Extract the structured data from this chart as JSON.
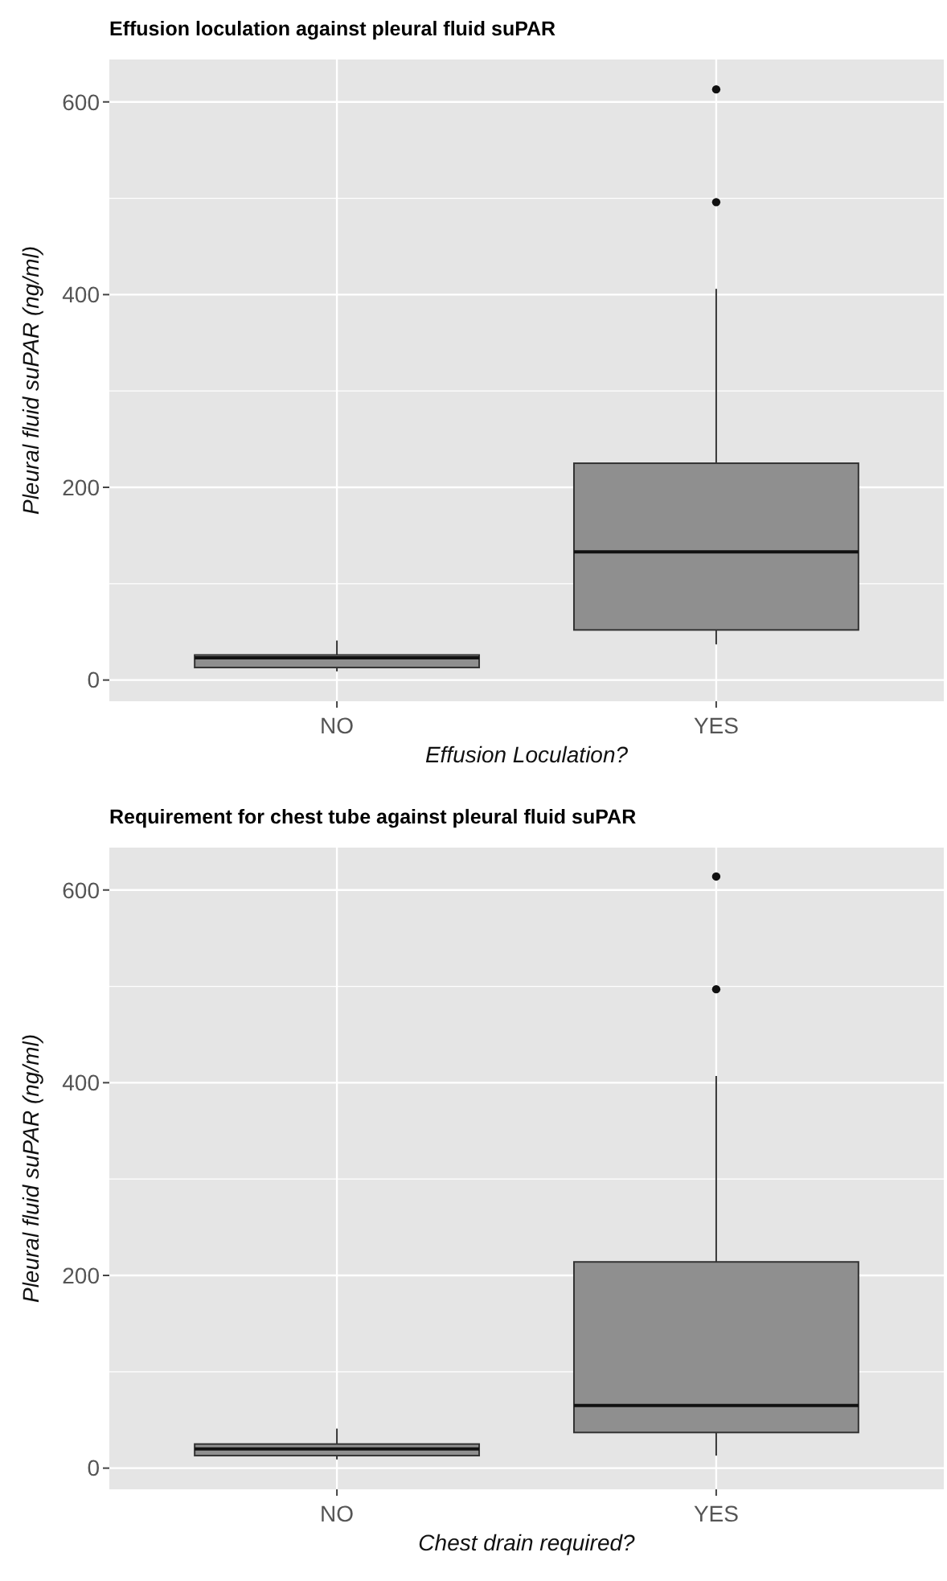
{
  "chart_data": [
    {
      "type": "box",
      "title": "Effusion loculation against pleural fluid suPAR",
      "xlabel": "Effusion Loculation?",
      "ylabel": "Pleural fluid suPAR (ng/ml)",
      "categories": [
        "NO",
        "YES"
      ],
      "color": "#8f8f8f",
      "boxes": [
        {
          "low": 9,
          "q1": 13,
          "median": 23,
          "q3": 26,
          "high": 41
        },
        {
          "low": 37,
          "q1": 52,
          "median": 133,
          "q3": 225,
          "high": 406,
          "outliers": [
            496,
            613
          ]
        }
      ],
      "ylim": [
        -22,
        644
      ],
      "yticks": [
        0,
        {
          "value": 100,
          "label": null
        },
        200,
        {
          "value": 300,
          "label": null
        },
        400,
        {
          "value": 500,
          "label": null
        },
        600
      ],
      "grid": true
    },
    {
      "type": "box",
      "title": "Requirement for chest tube against pleural fluid suPAR",
      "xlabel": "Chest drain required?",
      "ylabel": "Pleural fluid suPAR (ng/ml)",
      "categories": [
        "NO",
        "YES"
      ],
      "color": "#8f8f8f",
      "boxes": [
        {
          "low": 9,
          "q1": 13,
          "median": 20,
          "q3": 25,
          "high": 41
        },
        {
          "low": 13,
          "q1": 37,
          "median": 65,
          "q3": 214,
          "high": 407,
          "outliers": [
            497,
            614
          ]
        }
      ],
      "ylim": [
        -22,
        644
      ],
      "yticks": [
        0,
        {
          "value": 100,
          "label": null
        },
        200,
        {
          "value": 300,
          "label": null
        },
        400,
        {
          "value": 500,
          "label": null
        },
        600
      ],
      "grid": true
    }
  ]
}
